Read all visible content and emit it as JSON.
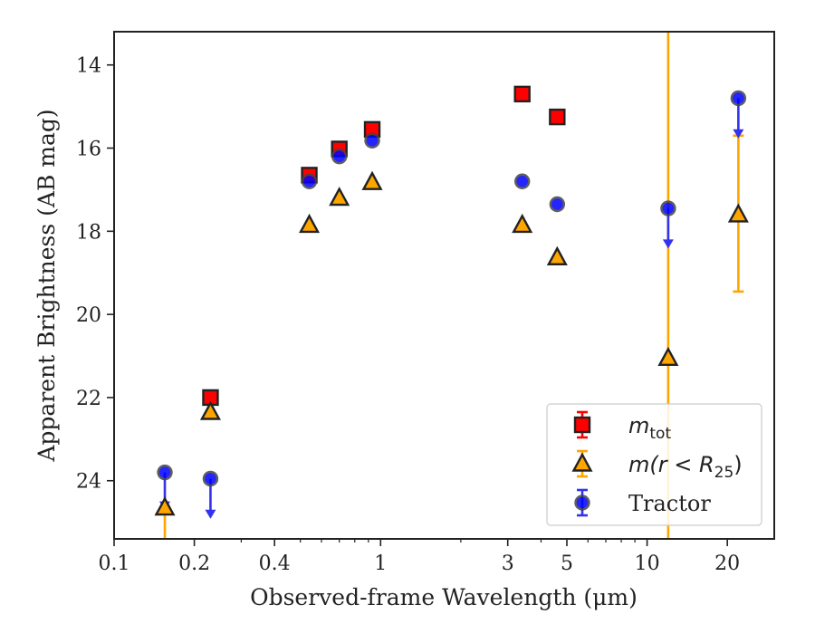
{
  "chart_data": {
    "type": "scatter",
    "xscale": "log",
    "yaxis_inverted": true,
    "xlabel": "Observed-frame Wavelength (μm)",
    "ylabel": "Apparent Brightness (AB mag)",
    "xlim": [
      0.1,
      30
    ],
    "ylim": [
      25.4,
      13.2
    ],
    "xticks": [
      {
        "value": 0.1,
        "label": "0.1"
      },
      {
        "value": 0.2,
        "label": "0.2"
      },
      {
        "value": 0.4,
        "label": "0.4"
      },
      {
        "value": 1,
        "label": "1"
      },
      {
        "value": 3,
        "label": "3"
      },
      {
        "value": 5,
        "label": "5"
      },
      {
        "value": 10,
        "label": "10"
      },
      {
        "value": 20,
        "label": "20"
      }
    ],
    "yticks": [
      {
        "value": 14,
        "label": "14"
      },
      {
        "value": 16,
        "label": "16"
      },
      {
        "value": 18,
        "label": "18"
      },
      {
        "value": 20,
        "label": "20"
      },
      {
        "value": 22,
        "label": "22"
      },
      {
        "value": 24,
        "label": "24"
      }
    ],
    "grid": false,
    "legend_position": "lower-right",
    "series": [
      {
        "name": "m_tot",
        "marker": "square",
        "color": "#ff0000",
        "errcolor": "#ff0000",
        "points": [
          {
            "x": 0.23,
            "y": 22.0
          },
          {
            "x": 0.54,
            "y": 16.65
          },
          {
            "x": 0.7,
            "y": 16.02
          },
          {
            "x": 0.93,
            "y": 15.55
          },
          {
            "x": 3.4,
            "y": 14.7
          },
          {
            "x": 4.6,
            "y": 15.25
          }
        ]
      },
      {
        "name": "m(r < R_25)",
        "marker": "triangle",
        "color": "#ffa500",
        "errcolor": "#ffa500",
        "points": [
          {
            "x": 0.155,
            "y": 24.65,
            "yerr_high": 25.4
          },
          {
            "x": 0.23,
            "y": 22.35
          },
          {
            "x": 0.54,
            "y": 17.85
          },
          {
            "x": 0.7,
            "y": 17.2
          },
          {
            "x": 0.93,
            "y": 16.82
          },
          {
            "x": 3.4,
            "y": 17.85
          },
          {
            "x": 4.6,
            "y": 18.63
          },
          {
            "x": 12.0,
            "y": 21.05,
            "yerr_low": 13.2,
            "yerr_high": 25.4
          },
          {
            "x": 22.0,
            "y": 17.6,
            "yerr_low": 15.7,
            "yerr_high": 19.45
          }
        ]
      },
      {
        "name": "Tractor",
        "marker": "circle",
        "color": "#0000ff",
        "errcolor": "#3333ee",
        "points": [
          {
            "x": 0.155,
            "y": 23.8,
            "upper_limit_to": 24.65
          },
          {
            "x": 0.23,
            "y": 23.95,
            "upper_limit_to": 24.85
          },
          {
            "x": 0.54,
            "y": 16.8
          },
          {
            "x": 0.7,
            "y": 16.2
          },
          {
            "x": 0.93,
            "y": 15.82
          },
          {
            "x": 3.4,
            "y": 16.8
          },
          {
            "x": 4.6,
            "y": 17.35
          },
          {
            "x": 12.0,
            "y": 17.45,
            "upper_limit_to": 18.35
          },
          {
            "x": 22.0,
            "y": 14.8,
            "upper_limit_to": 15.7
          }
        ]
      }
    ]
  },
  "legend": {
    "items": [
      {
        "marker": "square",
        "color": "#ff0000",
        "errcolor": "#ff0000",
        "base": "m",
        "sub": "tot",
        "rest": ""
      },
      {
        "marker": "triangle",
        "color": "#ffa500",
        "errcolor": "#ffa500",
        "base": "m(r < R",
        "sub": "25",
        "rest": ")"
      },
      {
        "marker": "circle",
        "color": "#0000ff",
        "errcolor": "#3333ee",
        "base": "Tractor",
        "sub": "",
        "rest": ""
      }
    ]
  }
}
